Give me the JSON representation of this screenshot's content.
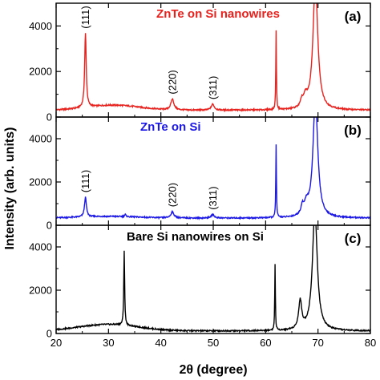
{
  "chart_data": {
    "type": "line",
    "xlabel": "2θ (degree)",
    "ylabel": "Intensity (arb. units)",
    "xlim": [
      20,
      80
    ],
    "x_ticks": [
      20,
      30,
      40,
      50,
      60,
      70,
      80
    ],
    "y_ticks": [
      0,
      2000,
      4000
    ],
    "panels": [
      {
        "letter": "(a)",
        "title": "ZnTe on Si nanowires",
        "title_color": "#e8211d",
        "line_color": "#e8211d",
        "ylim": [
          0,
          5000
        ],
        "baseline": 300,
        "broad_hump": {
          "center": 31,
          "width": 7,
          "height": 220
        },
        "peaks": [
          {
            "x": 25.6,
            "height": 3250,
            "width": 0.18,
            "label": "(111)"
          },
          {
            "x": 42.2,
            "height": 470,
            "width": 0.35,
            "label": "(220)"
          },
          {
            "x": 49.9,
            "height": 260,
            "width": 0.35,
            "label": "(311)"
          },
          {
            "x": 62.0,
            "height": 3450,
            "width": 0.07,
            "label": ""
          },
          {
            "x": 66.9,
            "height": 280,
            "width": 0.25,
            "label": ""
          },
          {
            "x": 67.6,
            "height": 450,
            "width": 0.45,
            "label": ""
          },
          {
            "x": 69.5,
            "height": 5600,
            "width": 0.55,
            "label": ""
          }
        ]
      },
      {
        "letter": "(b)",
        "title": "ZnTe on Si",
        "title_color": "#1b17e6",
        "line_color": "#1b17e6",
        "ylim": [
          0,
          5000
        ],
        "baseline": 330,
        "broad_hump": {
          "center": 30,
          "width": 8,
          "height": 80
        },
        "peaks": [
          {
            "x": 25.6,
            "height": 900,
            "width": 0.22,
            "label": "(111)"
          },
          {
            "x": 33.2,
            "height": 100,
            "width": 0.15,
            "label": ""
          },
          {
            "x": 42.2,
            "height": 280,
            "width": 0.35,
            "label": "(220)"
          },
          {
            "x": 49.9,
            "height": 160,
            "width": 0.35,
            "label": "(311)"
          },
          {
            "x": 62.0,
            "height": 3400,
            "width": 0.07,
            "label": ""
          },
          {
            "x": 67.0,
            "height": 380,
            "width": 0.3,
            "label": ""
          },
          {
            "x": 67.8,
            "height": 500,
            "width": 0.5,
            "label": ""
          },
          {
            "x": 69.5,
            "height": 5500,
            "width": 0.55,
            "label": ""
          }
        ]
      },
      {
        "letter": "(c)",
        "title": "Bare Si nanowires on Si",
        "title_color": "#000000",
        "line_color": "#000000",
        "ylim": [
          0,
          5000
        ],
        "baseline": 120,
        "broad_hump": {
          "center": 30,
          "width": 8,
          "height": 300
        },
        "peaks": [
          {
            "x": 33.0,
            "height": 3450,
            "width": 0.1,
            "label": ""
          },
          {
            "x": 61.8,
            "height": 3050,
            "width": 0.07,
            "label": ""
          },
          {
            "x": 66.6,
            "height": 1300,
            "width": 0.35,
            "label": ""
          },
          {
            "x": 69.4,
            "height": 5600,
            "width": 0.55,
            "label": ""
          }
        ]
      }
    ]
  }
}
